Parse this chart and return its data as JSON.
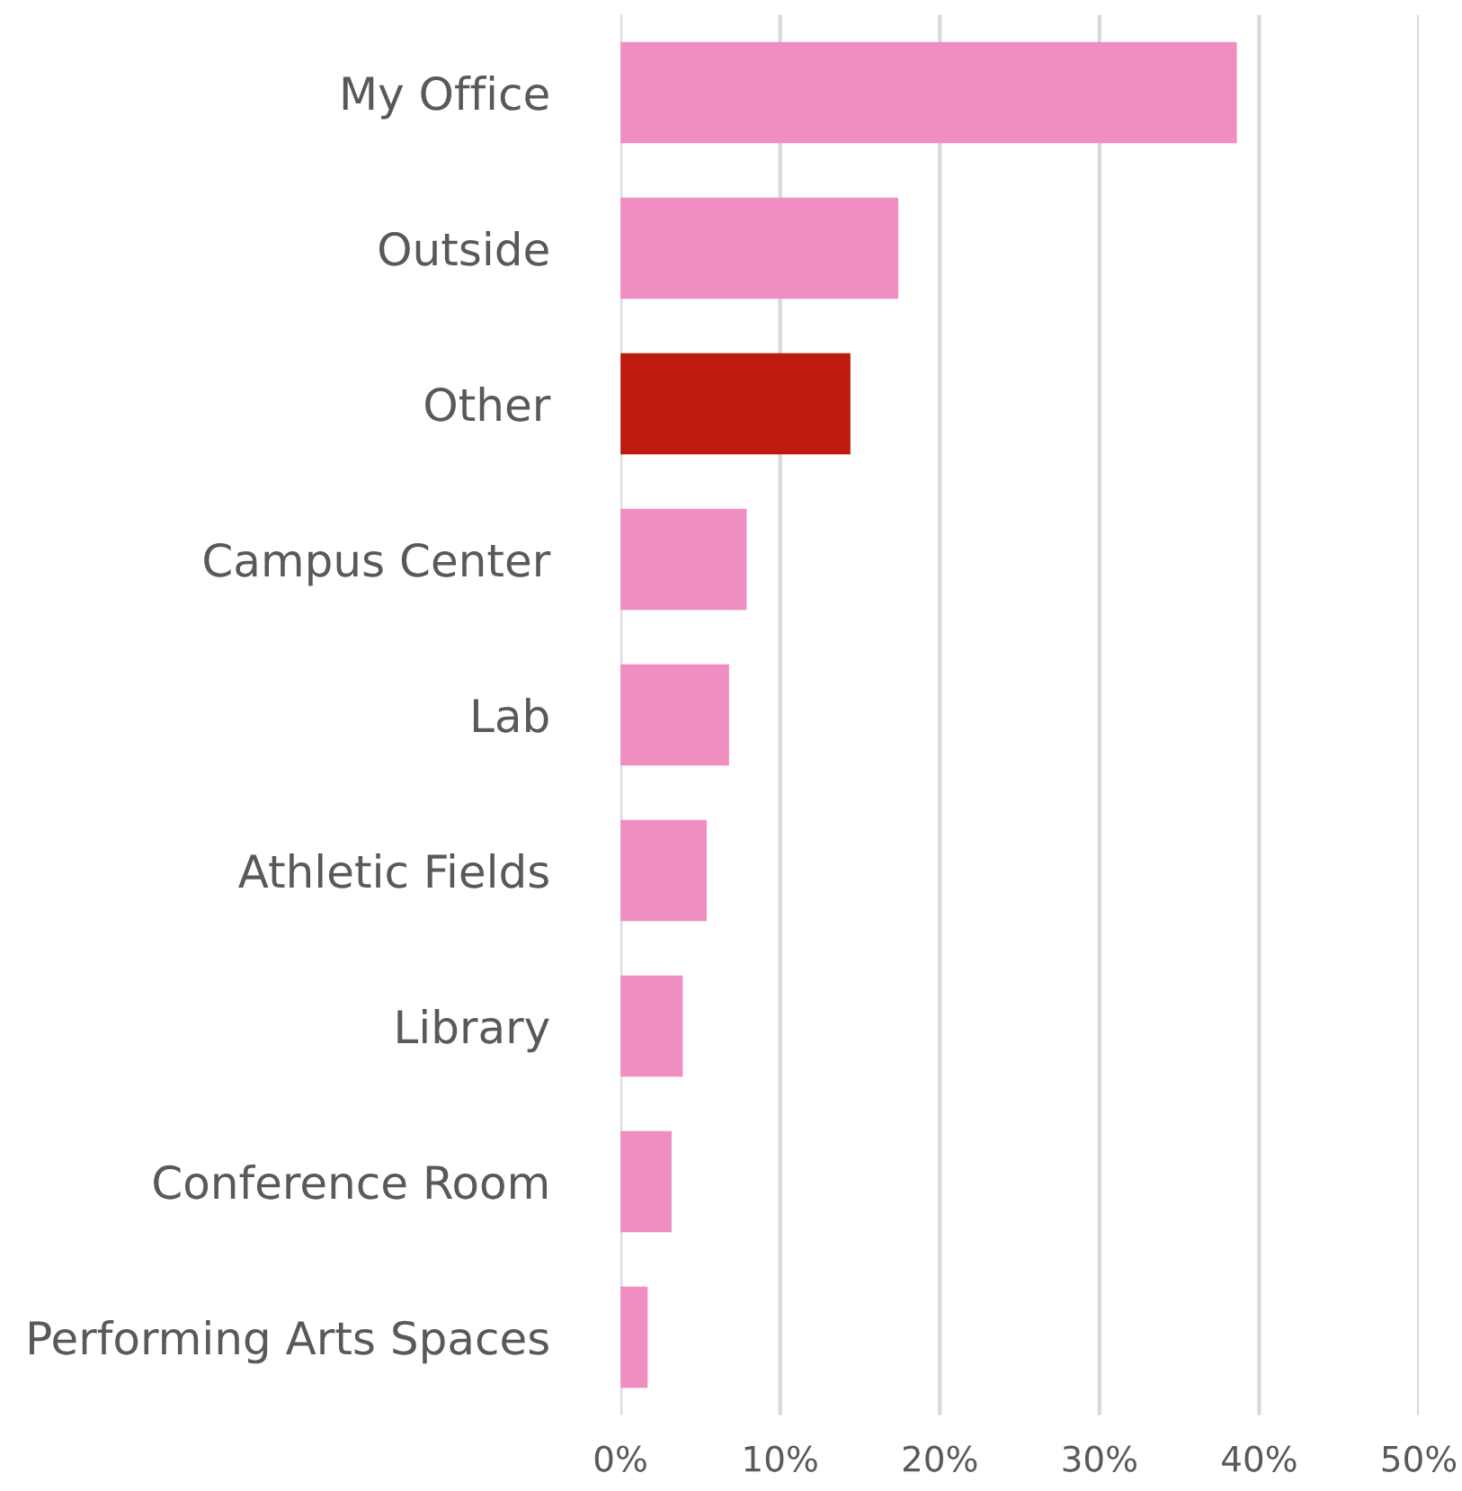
{
  "chart_data": {
    "type": "bar",
    "orientation": "horizontal",
    "categories": [
      "My Office",
      "Outside",
      "Other",
      "Campus Center",
      "Lab",
      "Athletic Fields",
      "Library",
      "Conference Room",
      "Performing Arts Spaces"
    ],
    "values": [
      38.6,
      17.4,
      14.4,
      7.9,
      6.8,
      5.4,
      3.9,
      3.2,
      1.7
    ],
    "colors": [
      "#f08dc1",
      "#f08dc1",
      "#be1a10",
      "#f08dc1",
      "#f08dc1",
      "#f08dc1",
      "#f08dc1",
      "#f08dc1",
      "#f08dc1"
    ],
    "xlim": [
      0,
      50
    ],
    "xticks": [
      {
        "value": 0,
        "label": "0%"
      },
      {
        "value": 10,
        "label": "10%"
      },
      {
        "value": 20,
        "label": "20%"
      },
      {
        "value": 30,
        "label": "30%"
      },
      {
        "value": 40,
        "label": "40%"
      },
      {
        "value": 50,
        "label": "50%"
      }
    ],
    "grid": "x",
    "legend": false
  }
}
